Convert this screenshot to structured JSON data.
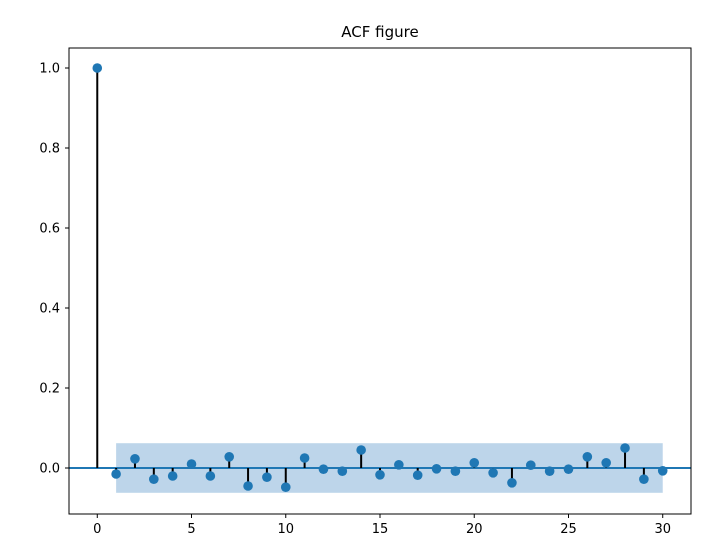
{
  "chart_data": {
    "type": "stem",
    "title": "ACF figure",
    "xlabel": "",
    "ylabel": "",
    "xlim": [
      -1.5,
      31.5
    ],
    "ylim": [
      -0.115,
      1.05
    ],
    "xticks": [
      0,
      5,
      10,
      15,
      20,
      25,
      30
    ],
    "xtick_labels": [
      "0",
      "5",
      "10",
      "15",
      "20",
      "25",
      "30"
    ],
    "yticks": [
      0.0,
      0.2,
      0.4,
      0.6,
      0.8,
      1.0
    ],
    "ytick_labels": [
      "0.0",
      "0.2",
      "0.4",
      "0.6",
      "0.8",
      "1.0"
    ],
    "grid": false,
    "lags": [
      0,
      1,
      2,
      3,
      4,
      5,
      6,
      7,
      8,
      9,
      10,
      11,
      12,
      13,
      14,
      15,
      16,
      17,
      18,
      19,
      20,
      21,
      22,
      23,
      24,
      25,
      26,
      27,
      28,
      29,
      30
    ],
    "values": [
      1.0,
      -0.015,
      0.023,
      -0.028,
      -0.02,
      0.01,
      -0.02,
      0.028,
      -0.045,
      -0.023,
      -0.048,
      0.025,
      -0.003,
      -0.008,
      0.045,
      -0.017,
      0.008,
      -0.018,
      -0.002,
      -0.008,
      0.013,
      -0.012,
      -0.037,
      0.007,
      -0.008,
      -0.003,
      0.028,
      0.013,
      0.05,
      -0.028,
      -0.007
    ],
    "confidence_band": {
      "lag_start": 1,
      "lag_end": 30,
      "lower": -0.062,
      "upper": 0.062
    },
    "colors": {
      "marker": "#1f77b4",
      "stem": "#000000",
      "zero_line": "#1f77b4",
      "band": "#a7c7e3"
    }
  }
}
